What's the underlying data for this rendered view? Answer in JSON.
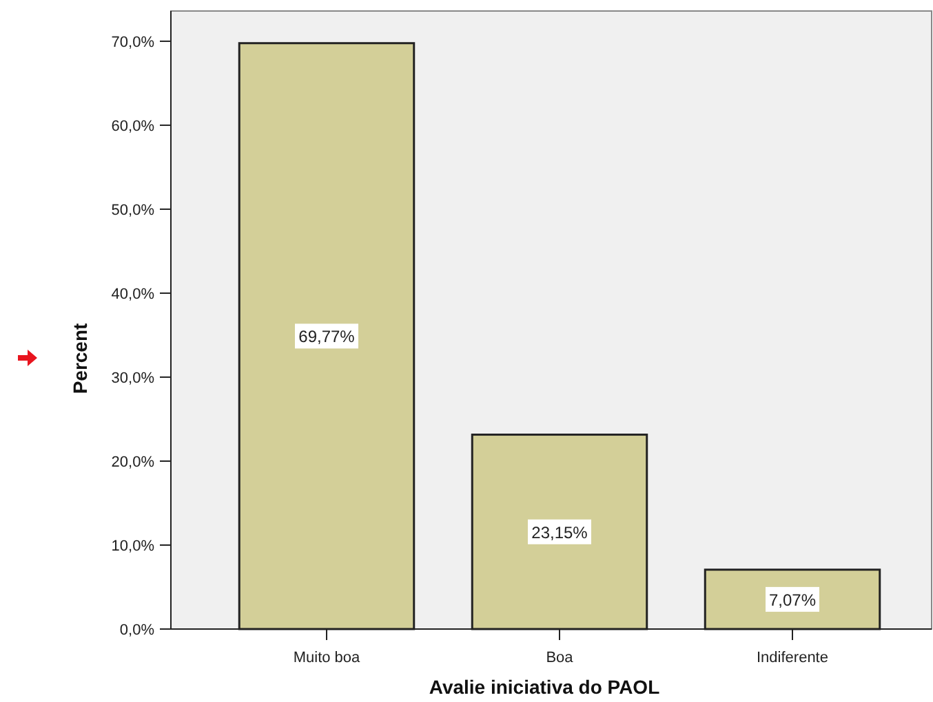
{
  "chart_data": {
    "type": "bar",
    "xlabel": "Avalie iniciativa do PAOL",
    "ylabel": "Percent",
    "categories": [
      "Muito boa",
      "Boa",
      "Indiferente"
    ],
    "values": [
      69.77,
      23.15,
      7.07
    ],
    "value_labels": [
      "69,77%",
      "23,15%",
      "7,07%"
    ],
    "color": "#d3cf98",
    "ylim": [
      0,
      73.6
    ],
    "yticks": [
      {
        "value": 0,
        "label": "0,0%"
      },
      {
        "value": 10,
        "label": "10,0%"
      },
      {
        "value": 20,
        "label": "20,0%"
      },
      {
        "value": 30,
        "label": "30,0%"
      },
      {
        "value": 40,
        "label": "40,0%"
      },
      {
        "value": 50,
        "label": "50,0%"
      },
      {
        "value": 60,
        "label": "60,0%"
      },
      {
        "value": 70,
        "label": "70,0%"
      }
    ],
    "grid": false
  }
}
